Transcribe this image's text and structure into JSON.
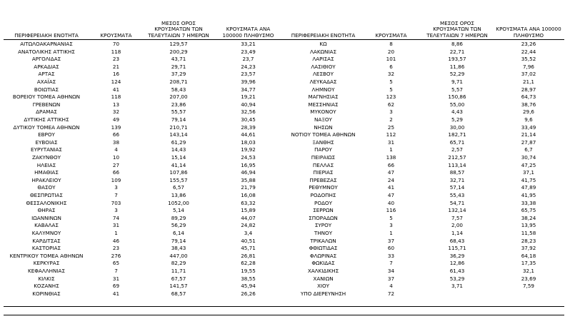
{
  "tables": [
    {
      "headers": [
        "ΠΕΡΙΦΕΡΕΙΑΚΗ ΕΝΟΤΗΤΑ",
        "ΚΡΟΥΣΜΑΤΑ",
        "ΜΕΣΟΣ ΟΡΟΣ ΚΡΟΥΣΜΑΤΩΝ ΤΩΝ ΤΕΛΕΥΤΑΙΩΝ 7 ΗΜΕΡΩΝ",
        "ΚΡΟΥΣΜΑΤΑ ΑΝΑ 100000 ΠΛΗΘΥΣΜΟ"
      ],
      "rows": [
        [
          "ΑΙΤΩΛΟΑΚΑΡΝΑΝΙΑΣ",
          "70",
          "129,57",
          "33,21"
        ],
        [
          "ΑΝΑΤΟΛΙΚΗΣ ΑΤΤΙΚΗΣ",
          "118",
          "200,29",
          "23,49"
        ],
        [
          "ΑΡΓΟΛΙΔΑΣ",
          "23",
          "43,71",
          "23,7"
        ],
        [
          "ΑΡΚΑΔΙΑΣ",
          "21",
          "29,71",
          "24,23"
        ],
        [
          "ΑΡΤΑΣ",
          "16",
          "37,29",
          "23,57"
        ],
        [
          "ΑΧΑΪΑΣ",
          "124",
          "208,71",
          "39,96"
        ],
        [
          "ΒΟΙΩΤΙΑΣ",
          "41",
          "58,43",
          "34,77"
        ],
        [
          "ΒΟΡΕΙΟΥ ΤΟΜΕΑ ΑΘΗΝΩΝ",
          "118",
          "207,00",
          "19,21"
        ],
        [
          "ΓΡΕΒΕΝΩΝ",
          "13",
          "23,86",
          "40,94"
        ],
        [
          "ΔΡΑΜΑΣ",
          "32",
          "55,57",
          "32,56"
        ],
        [
          "ΔΥΤΙΚΗΣ ΑΤΤΙΚΗΣ",
          "49",
          "79,14",
          "30,45"
        ],
        [
          "ΔΥΤΙΚΟΥ ΤΟΜΕΑ ΑΘΗΝΩΝ",
          "139",
          "210,71",
          "28,39"
        ],
        [
          "ΕΒΡΟΥ",
          "66",
          "143,14",
          "44,61"
        ],
        [
          "ΕΥΒΟΙΑΣ",
          "38",
          "61,29",
          "18,03"
        ],
        [
          "ΕΥΡΥΤΑΝΙΑΣ",
          "4",
          "14,43",
          "19,92"
        ],
        [
          "ΖΑΚΥΝΘΟΥ",
          "10",
          "15,14",
          "24,53"
        ],
        [
          "ΗΛΕΙΑΣ",
          "27",
          "41,14",
          "16,95"
        ],
        [
          "ΗΜΑΘΙΑΣ",
          "66",
          "107,86",
          "46,94"
        ],
        [
          "ΗΡΑΚΛΕΙΟΥ",
          "109",
          "155,57",
          "35,88"
        ],
        [
          "ΘΑΣΟΥ",
          "3",
          "6,57",
          "21,79"
        ],
        [
          "ΘΕΣΠΡΩΤΙΑΣ",
          "7",
          "13,86",
          "16,08"
        ],
        [
          "ΘΕΣΣΑΛΟΝΙΚΗΣ",
          "703",
          "1052,00",
          "63,32"
        ],
        [
          "ΘΗΡΑΣ",
          "3",
          "5,14",
          "15,89"
        ],
        [
          "ΙΩΑΝΝΙΝΩΝ",
          "74",
          "89,29",
          "44,07"
        ],
        [
          "ΚΑΒΑΛΑΣ",
          "31",
          "56,29",
          "24,82"
        ],
        [
          "ΚΑΛΥΜΝΟΥ",
          "1",
          "6,14",
          "3,4"
        ],
        [
          "ΚΑΡΔΙΤΣΑΣ",
          "46",
          "79,14",
          "40,51"
        ],
        [
          "ΚΑΣΤΟΡΙΑΣ",
          "23",
          "38,43",
          "45,71"
        ],
        [
          "ΚΕΝΤΡΙΚΟΥ ΤΟΜΕΑ ΑΘΗΝΩΝ",
          "276",
          "447,00",
          "26,81"
        ],
        [
          "ΚΕΡΚΥΡΑΣ",
          "65",
          "82,29",
          "62,28"
        ],
        [
          "ΚΕΦΑΛΛΗΝΙΑΣ",
          "7",
          "11,71",
          "19,55"
        ],
        [
          "ΚΙΛΚΙΣ",
          "31",
          "67,57",
          "38,55"
        ],
        [
          "ΚΟΖΑΝΗΣ",
          "69",
          "141,57",
          "45,94"
        ],
        [
          "ΚΟΡΙΝΘΙΑΣ",
          "41",
          "68,57",
          "26,26"
        ]
      ]
    },
    {
      "headers": [
        "ΠΕΡΙΦΕΡΕΙΑΚΗ ΕΝΟΤΗΤΑ",
        "ΚΡΟΥΣΜΑΤΑ",
        "ΜΕΣΟΣ ΟΡΟΣ ΚΡΟΥΣΜΑΤΩΝ ΤΩΝ ΤΕΛΕΥΤΑΙΩΝ 7 ΗΜΕΡΩΝ",
        "ΚΡΟΥΣΜΑΤΑ ΑΝΑ 100000 ΠΛΗΘΥΣΜΟ"
      ],
      "rows": [
        [
          "ΚΩ",
          "8",
          "8,86",
          "23,26"
        ],
        [
          "ΛΑΚΩΝΙΑΣ",
          "20",
          "22,71",
          "22,44"
        ],
        [
          "ΛΑΡΙΣΑΣ",
          "101",
          "193,57",
          "35,52"
        ],
        [
          "ΛΑΣΙΘΙΟΥ",
          "6",
          "11,86",
          "7,96"
        ],
        [
          "ΛΕΣΒΟΥ",
          "32",
          "52,29",
          "37,02"
        ],
        [
          "ΛΕΥΚΑΔΑΣ",
          "5",
          "9,71",
          "21,1"
        ],
        [
          "ΛΗΜΝΟΥ",
          "5",
          "5,57",
          "28,97"
        ],
        [
          "ΜΑΓΝΗΣΙΑΣ",
          "123",
          "150,86",
          "64,73"
        ],
        [
          "ΜΕΣΣΗΝΙΑΣ",
          "62",
          "55,00",
          "38,76"
        ],
        [
          "ΜΥΚΟΝΟΥ",
          "3",
          "4,43",
          "29,6"
        ],
        [
          "ΝΑΞΟΥ",
          "2",
          "5,29",
          "9,6"
        ],
        [
          "ΝΗΣΩΝ",
          "25",
          "30,00",
          "33,49"
        ],
        [
          "ΝΟΤΙΟΥ ΤΟΜΕΑ ΑΘΗΝΩΝ",
          "112",
          "182,71",
          "21,14"
        ],
        [
          "ΞΑΝΘΗΣ",
          "31",
          "65,71",
          "27,87"
        ],
        [
          "ΠΑΡΟΥ",
          "1",
          "2,57",
          "6,7"
        ],
        [
          "ΠΕΙΡΑΙΩΣ",
          "138",
          "212,57",
          "30,74"
        ],
        [
          "ΠΕΛΛΑΣ",
          "66",
          "113,14",
          "47,25"
        ],
        [
          "ΠΙΕΡΙΑΣ",
          "47",
          "88,57",
          "37,1"
        ],
        [
          "ΠΡΕΒΕΖΑΣ",
          "24",
          "32,71",
          "41,75"
        ],
        [
          "ΡΕΘΥΜΝΟΥ",
          "41",
          "57,14",
          "47,89"
        ],
        [
          "ΡΟΔΟΠΗΣ",
          "47",
          "55,43",
          "41,95"
        ],
        [
          "ΡΟΔΟΥ",
          "40",
          "54,71",
          "33,38"
        ],
        [
          "ΣΕΡΡΩΝ",
          "116",
          "132,14",
          "65,75"
        ],
        [
          "ΣΠΟΡΑΔΩΝ",
          "5",
          "7,57",
          "38,24"
        ],
        [
          "ΣΥΡΟΥ",
          "3",
          "2,00",
          "13,95"
        ],
        [
          "ΤΗΝΟΥ",
          "1",
          "1,14",
          "11,58"
        ],
        [
          "ΤΡΙΚΑΛΩΝ",
          "37",
          "68,43",
          "28,23"
        ],
        [
          "ΦΘΙΩΤΙΔΑΣ",
          "60",
          "115,71",
          "37,92"
        ],
        [
          "ΦΛΩΡΙΝΑΣ",
          "33",
          "36,29",
          "64,18"
        ],
        [
          "ΦΩΚΙΔΑΣ",
          "7",
          "12,86",
          "17,35"
        ],
        [
          "ΧΑΛΚΙΔΙΚΗΣ",
          "34",
          "61,43",
          "32,1"
        ],
        [
          "ΧΑΝΙΩΝ",
          "37",
          "53,29",
          "23,69"
        ],
        [
          "ΧΙΟΥ",
          "4",
          "3,71",
          "7,59"
        ],
        [
          "ΥΠΟ ΔΙΕΡΕΥΝΗΣΗ",
          "72"
        ]
      ]
    }
  ]
}
